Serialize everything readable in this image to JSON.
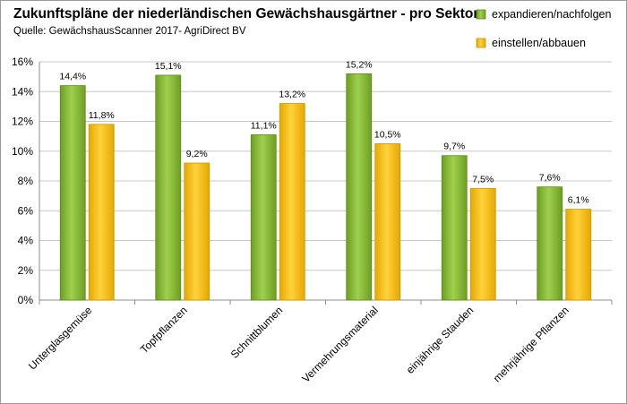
{
  "chart_data": {
    "type": "bar",
    "title": "Zukunftspläne der niederländischen Gewächshausgärtner - pro Sektor",
    "subtitle": "Quelle: GewächshausScanner 2017- AgriDirect BV",
    "xlabel": "",
    "ylabel": "",
    "ylim": [
      0,
      16
    ],
    "yticks": [
      "0%",
      "2%",
      "4%",
      "6%",
      "8%",
      "10%",
      "12%",
      "14%",
      "16%"
    ],
    "grid": true,
    "legend_position": "top-right",
    "categories": [
      "Unterglasgemüse",
      "Topfpflanzen",
      "Schnittblumen",
      "Vermehrungsmaterial",
      "einjährige Stauden",
      "mehrjährige Pflanzen"
    ],
    "series": [
      {
        "name": "expandieren/nachfolgen",
        "color": "#8cc63f",
        "values": [
          14.4,
          15.1,
          11.1,
          15.2,
          9.7,
          7.6
        ],
        "labels": [
          "14,4%",
          "15,1%",
          "11,1%",
          "15,2%",
          "9,7%",
          "7,6%"
        ]
      },
      {
        "name": "einstellen/abbauen",
        "color": "#ffc000",
        "values": [
          11.8,
          9.2,
          13.2,
          10.5,
          7.5,
          6.1
        ],
        "labels": [
          "11,8%",
          "9,2%",
          "13,2%",
          "10,5%",
          "7,5%",
          "6,1%"
        ]
      }
    ]
  }
}
